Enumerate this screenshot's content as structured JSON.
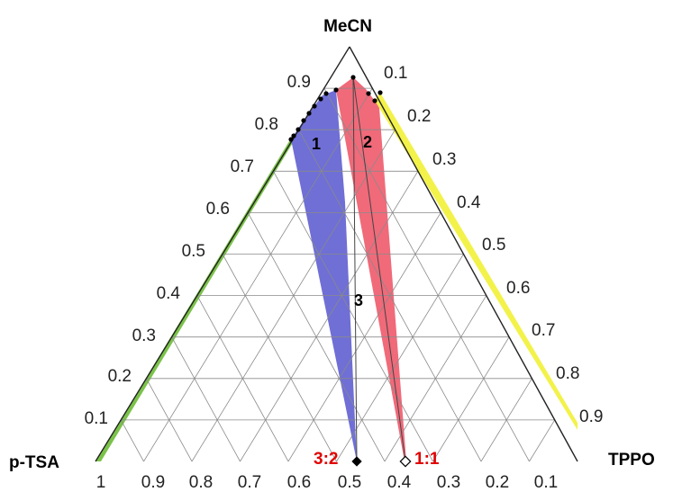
{
  "vertices": {
    "top": "MeCN",
    "left": "p-TSA",
    "right": "TPPO"
  },
  "left_axis_ticks": [
    "0.1",
    "0.2",
    "0.3",
    "0.4",
    "0.5",
    "0.6",
    "0.7",
    "0.8",
    "0.9"
  ],
  "right_axis_ticks": [
    "0.1",
    "0.2",
    "0.3",
    "0.4",
    "0.5",
    "0.6",
    "0.7",
    "0.8",
    "0.9"
  ],
  "bottom_axis_ticks": [
    "1",
    "0.9",
    "0.8",
    "0.7",
    "0.6",
    "0.5",
    "0.4",
    "0.3",
    "0.2",
    "0.1"
  ],
  "region_labels": [
    "1",
    "2",
    "3"
  ],
  "ratio_labels": [
    "3:2",
    "1:1"
  ],
  "colors": {
    "region_1": "#6f6fd6",
    "region_2": "#f06a7a",
    "left_sliver": "#7bc24a",
    "right_sliver": "#f2f24a",
    "ratio_text": "#e00000"
  }
}
